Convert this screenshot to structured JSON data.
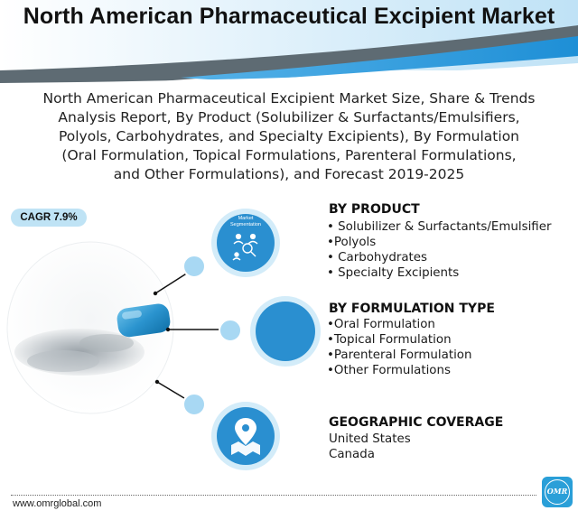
{
  "header": {
    "title": "North American Pharmaceutical Excipient Market"
  },
  "subtitle": {
    "lines": [
      "North American Pharmaceutical Excipient Market Size, Share & Trends",
      "Analysis Report, By Product (Solubilizer & Surfactants/Emulsifiers,",
      "Polyols, Carbohydrates, and Specialty Excipients), By Formulation",
      "(Oral Formulation, Topical Formulations, Parenteral Formulations,",
      "and Other Formulations), and Forecast 2019-2025"
    ]
  },
  "cagr": {
    "label": "CAGR 7.9%"
  },
  "circles": {
    "market_segmentation_label": [
      "Market",
      "Segmentation"
    ],
    "icons": [
      "people-network-icon",
      "location-pin-icon"
    ]
  },
  "by_product": {
    "heading": "BY PRODUCT",
    "items": [
      "• Solubilizer & Surfactants/Emulsifier",
      "•Polyols",
      "• Carbohydrates",
      "• Specialty Excipients"
    ]
  },
  "by_formulation": {
    "heading": "BY FORMULATION TYPE",
    "items": [
      "•Oral Formulation",
      "•Topical Formulation",
      "•Parenteral Formulation",
      "•Other Formulations"
    ]
  },
  "geographic": {
    "heading": "GEOGRAPHIC COVERAGE",
    "items": [
      "United States",
      "Canada"
    ]
  },
  "footer": {
    "website": "www.omrglobal.com",
    "logo_text": "OMR"
  },
  "colors": {
    "primary_blue": "#2a8fd0",
    "light_blue": "#a8d8f3",
    "header_gray": "#5e6b73",
    "header_blue": "#1e90d6"
  }
}
